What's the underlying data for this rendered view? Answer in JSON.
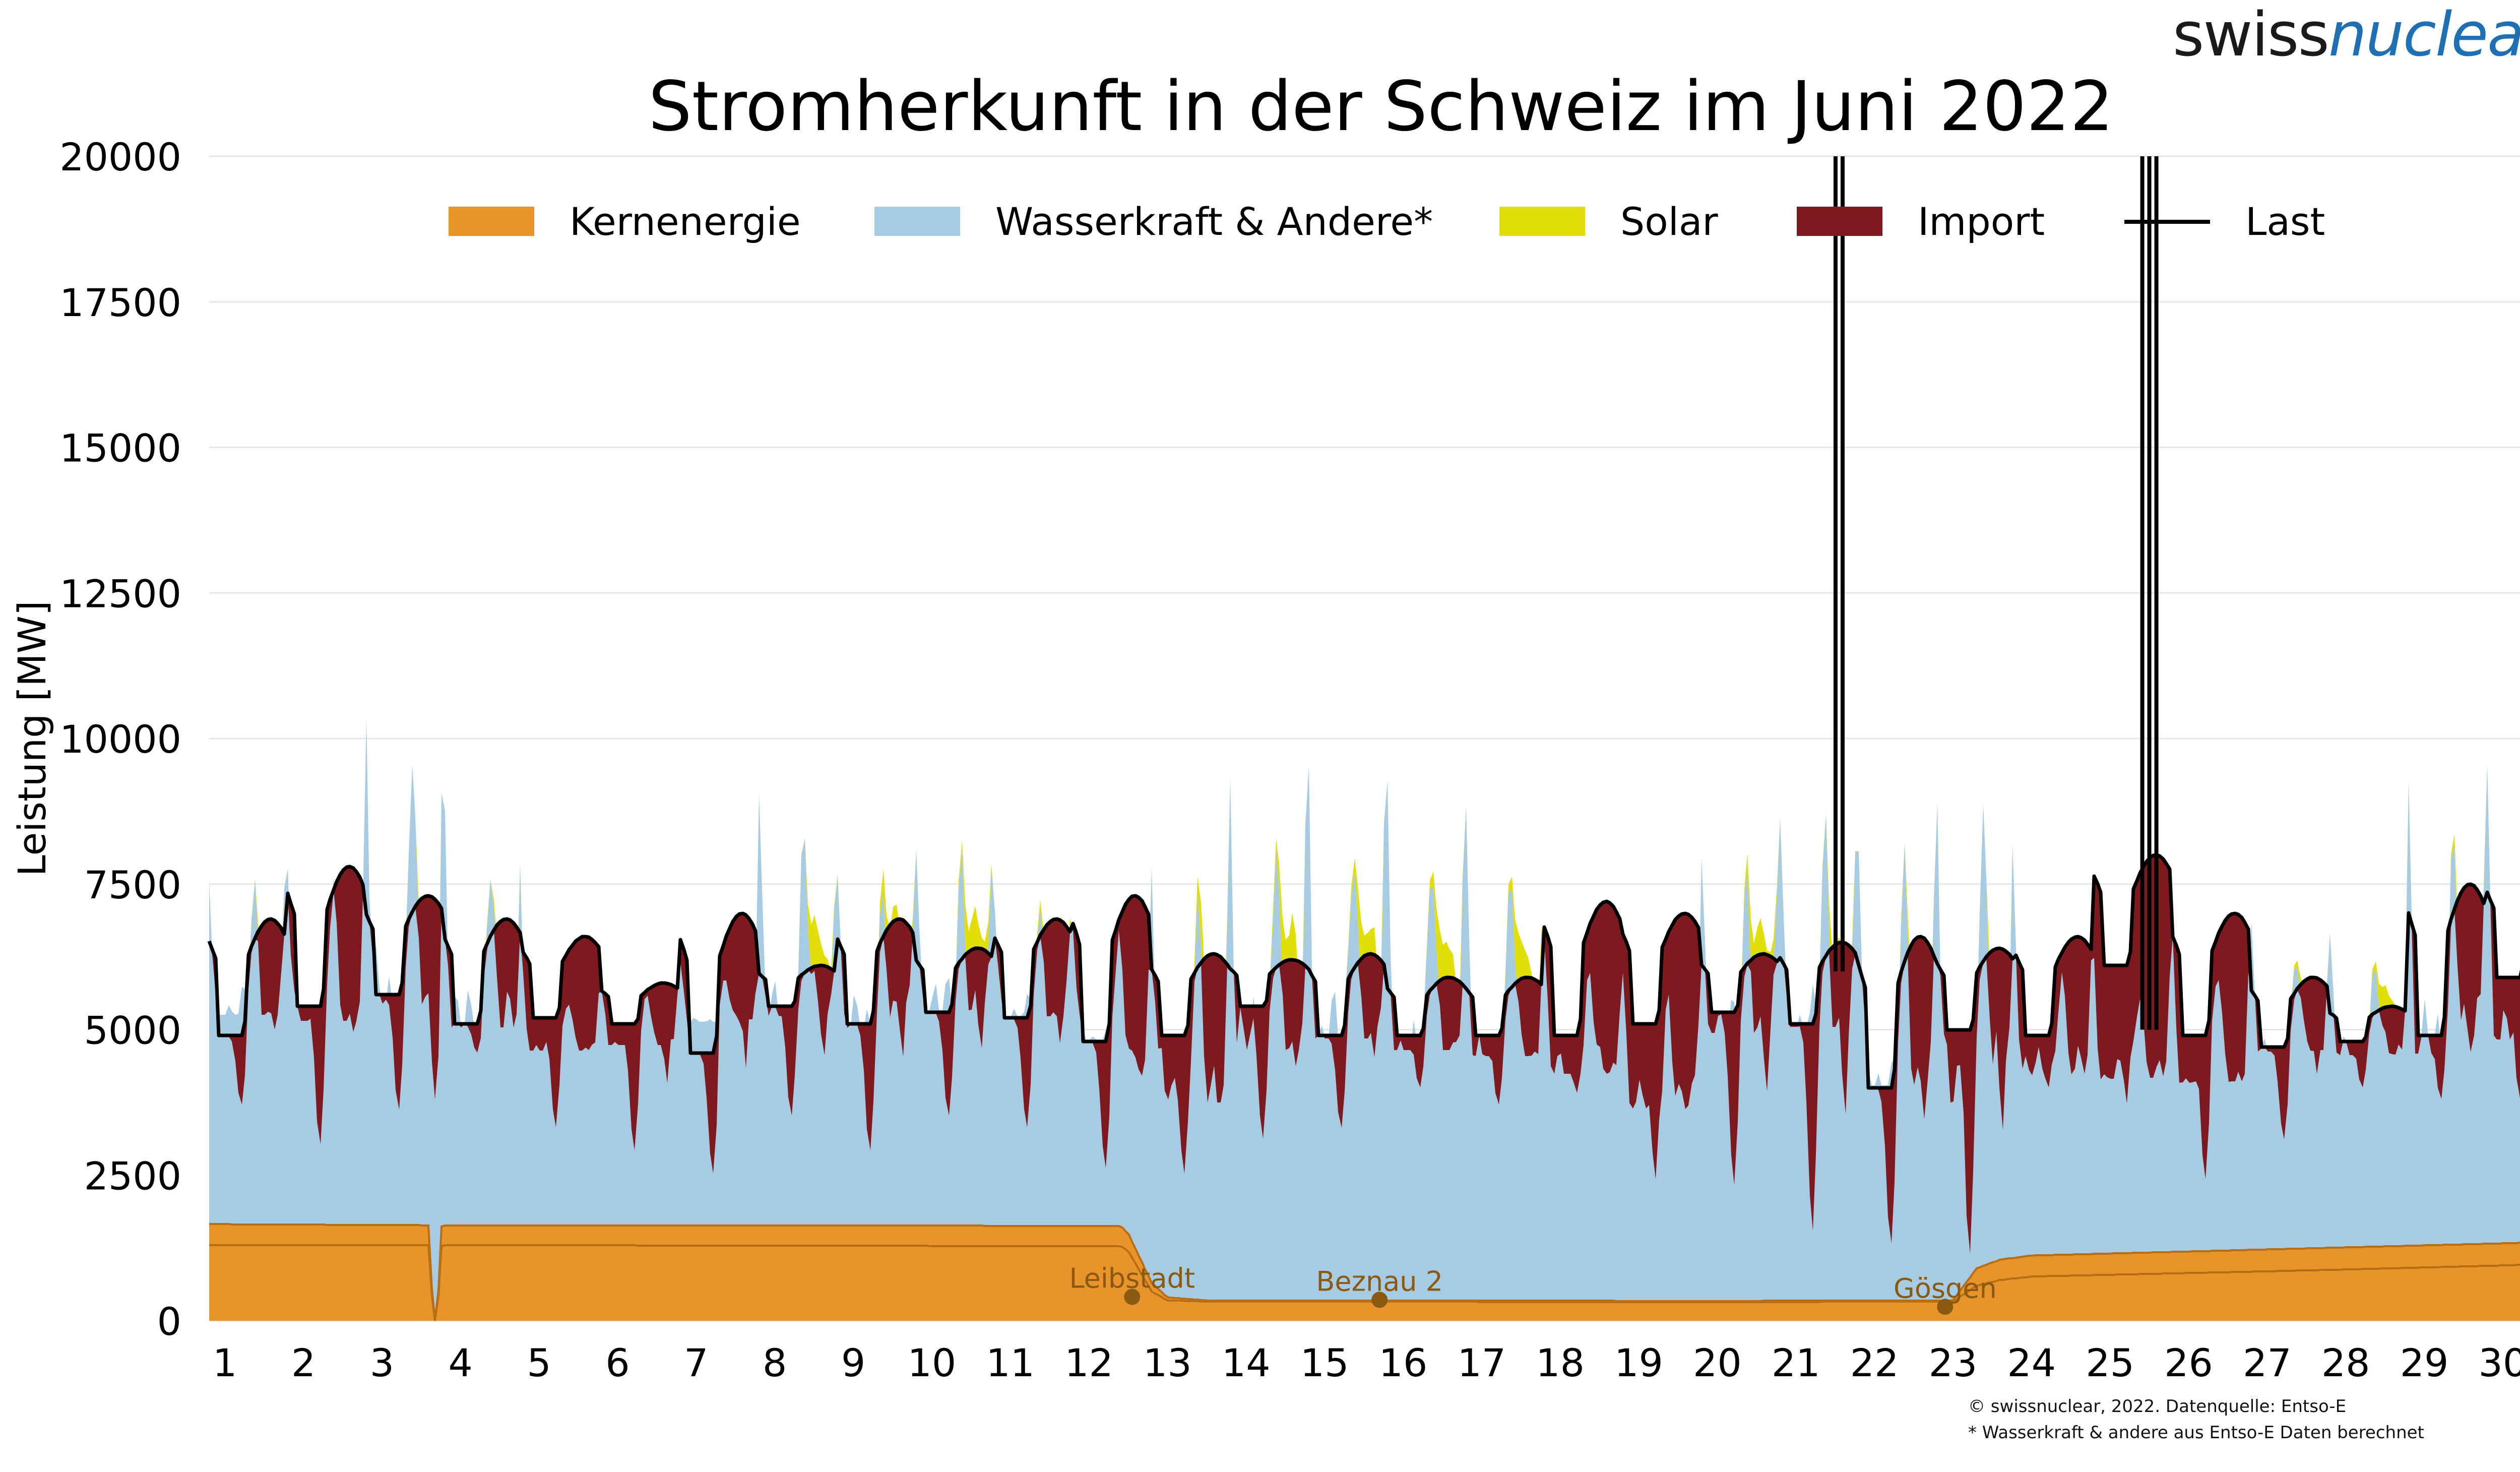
{
  "logo": {
    "part1": "swiss",
    "part2": "nuclear"
  },
  "footnotes": [
    "© swissnuclear, 2022. Datenquelle: Entso-E",
    "* Wasserkraft & andere aus Entso-E Daten berechnet"
  ],
  "colors": {
    "nuclear": "#E8942A",
    "nuclear_line": "#B76E15",
    "hydro": "#A7CBE2",
    "solar": "#E2DE0A",
    "import": "#7E1A1F",
    "load": "#000000",
    "grid": "#E6E6E6",
    "plant_marker": "#8A5A12"
  },
  "chart_data": {
    "type": "area",
    "title": "Stromherkunft in der Schweiz im Juni 2022",
    "xlabel": "",
    "ylabel": "Leistung [MW]",
    "ylim": [
      0,
      20000
    ],
    "xlim": [
      0.8,
      30.7
    ],
    "yticks": [
      0,
      2500,
      5000,
      7500,
      10000,
      12500,
      15000,
      17500,
      20000
    ],
    "xticks": [
      1,
      2,
      3,
      4,
      5,
      6,
      7,
      8,
      9,
      10,
      11,
      12,
      13,
      14,
      15,
      16,
      17,
      18,
      19,
      20,
      21,
      22,
      23,
      24,
      25,
      26,
      27,
      28,
      29,
      30
    ],
    "grid": "horizontal",
    "legend_position": "top",
    "legend": [
      "Kernenergie",
      "Wasserkraft & Andere*",
      "Solar",
      "Import",
      "Last"
    ],
    "stacking_order": [
      "Kernenergie",
      "Wasserkraft & Andere*",
      "Solar",
      "Import"
    ],
    "nuclear": {
      "x": [
        0.8,
        3.6,
        3.65,
        3.7,
        3.75,
        3.8,
        12.4,
        12.5,
        12.8,
        13.0,
        13.5,
        20.0,
        22.8,
        23.0,
        23.3,
        23.6,
        24.0,
        26.0,
        28.0,
        30.0,
        30.7
      ],
      "total": [
        1660,
        1640,
        0,
        0,
        1620,
        1640,
        1630,
        1500,
        650,
        400,
        350,
        340,
        350,
        350,
        900,
        1050,
        1120,
        1190,
        1260,
        1330,
        1360
      ],
      "base": [
        1300,
        1300,
        0,
        0,
        1280,
        1300,
        1280,
        1200,
        500,
        350,
        330,
        320,
        330,
        330,
        600,
        700,
        760,
        820,
        880,
        950,
        980
      ]
    },
    "series": [
      {
        "name": "Kernenergie",
        "values": [
          1660,
          1640,
          1640,
          1640,
          1640,
          1640,
          1640,
          1640,
          1640,
          1640,
          1640,
          1630,
          400,
          350,
          350,
          350,
          350,
          350,
          350,
          340,
          340,
          340,
          350,
          1120,
          1150,
          1190,
          1220,
          1260,
          1300,
          1340
        ]
      },
      {
        "name": "Wasserkraft & Andere*",
        "values": [
          3600,
          3500,
          3800,
          3400,
          3000,
          3100,
          3500,
          3600,
          3400,
          3700,
          3600,
          3200,
          3400,
          4300,
          4500,
          4300,
          4200,
          3900,
          3300,
          4600,
          4700,
          3700,
          3400,
          3100,
          3000,
          2900,
          3400,
          3300,
          3300,
          3500
        ],
        "daily_max": [
          8700,
          8700,
          11800,
          10000,
          6500,
          6500,
          6500,
          10000,
          9000,
          9700,
          8000,
          7500,
          9200,
          11100,
          10800,
          9900,
          9300,
          7200,
          7000,
          9500,
          10100,
          9500,
          10900,
          7500,
          7000,
          7400,
          7200,
          7200,
          10900,
          11500
        ]
      },
      {
        "name": "Solar",
        "values": [
          7600,
          7500,
          8100,
          7600,
          6100,
          6200,
          6400,
          8200,
          9200,
          8900,
          7800,
          7000,
          8900,
          9000,
          8900,
          8800,
          8600,
          7200,
          6700,
          9000,
          8300,
          8100,
          7600,
          6700,
          6800,
          6700,
          6700,
          6800,
          9000,
          9900
        ]
      },
      {
        "name": "Import",
        "values": [
          2200,
          2800,
          2600,
          1100,
          1900,
          2100,
          700,
          900,
          1200,
          900,
          700,
          1700,
          1800,
          900,
          800,
          600,
          500,
          2100,
          2500,
          1000,
          2200,
          2700,
          2800,
          700,
          2600,
          2600,
          700,
          400,
          500,
          1800
        ],
        "daily_min": [
          3700,
          3000,
          3600,
          4600,
          3300,
          2900,
          2500,
          3500,
          2900,
          3500,
          3300,
          2600,
          2500,
          3100,
          3300,
          4000,
          3700,
          3900,
          2400,
          2300,
          1500,
          1300,
          1100,
          4000,
          3700,
          2400,
          3100,
          4000,
          3800,
          3800
        ]
      },
      {
        "name": "Last",
        "night": [
          4900,
          5400,
          5600,
          5100,
          5200,
          5100,
          4600,
          5400,
          5100,
          5300,
          5200,
          4800,
          4900,
          5400,
          4900,
          4900,
          4900,
          4900,
          5100,
          5300,
          5100,
          4000,
          5000,
          4900,
          6100,
          4900,
          4700,
          4800,
          4900,
          5900
        ],
        "day_peak": [
          6900,
          7800,
          7300,
          6900,
          6600,
          5800,
          7000,
          6100,
          6900,
          6400,
          6900,
          7300,
          6300,
          6200,
          6300,
          5900,
          5900,
          7200,
          7000,
          6300,
          6500,
          6600,
          6400,
          6600,
          8000,
          7000,
          5900,
          5400,
          7500,
          7700
        ]
      }
    ],
    "load_spikes": [
      {
        "x": 21.55,
        "y_top": 20000,
        "y_bottom": 6000,
        "lines": 2
      },
      {
        "x": 25.5,
        "y_top": 20000,
        "y_bottom": 5000,
        "lines": 3
      }
    ],
    "annotations": [
      {
        "text": "Leibstadt",
        "x": 12.55,
        "y": 410
      },
      {
        "text": "Beznau 2",
        "x": 15.7,
        "y": 360
      },
      {
        "text": "Gösgen",
        "x": 22.9,
        "y": 240
      }
    ]
  }
}
